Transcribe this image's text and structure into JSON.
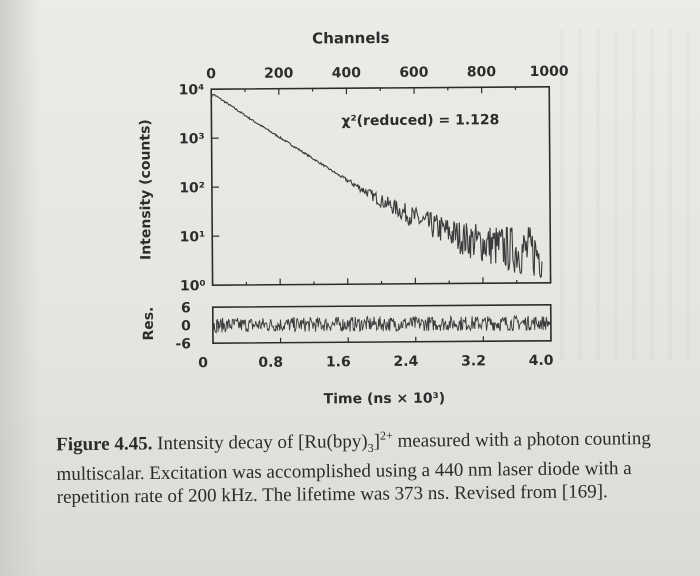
{
  "chart_data": [
    {
      "type": "line",
      "title": "",
      "top_axis_label": "Channels",
      "top_ticks": [
        "0",
        "200",
        "400",
        "600",
        "800",
        "1000"
      ],
      "top_tick_values": [
        0,
        200,
        400,
        600,
        800,
        1000
      ],
      "ylabel": "Intensity (counts)",
      "y_scale": "log",
      "y_ticks": [
        "10⁴",
        "10³",
        "10²",
        "10¹",
        "10⁰"
      ],
      "y_tick_exponents": [
        4,
        3,
        2,
        1,
        0
      ],
      "ylim": [
        1,
        10000
      ],
      "xlim_ns": [
        0,
        4000
      ],
      "annotation": "χ²(reduced) = 1.128",
      "series": [
        {
          "x_ns": [
            0,
            20,
            500,
            1000,
            1500,
            2000,
            2500,
            3000,
            3500,
            3900
          ],
          "y_counts": [
            6500,
            8000,
            2200,
            620,
            170,
            50,
            18,
            8,
            5,
            4
          ]
        }
      ]
    },
    {
      "type": "line",
      "ylabel": "Res.",
      "y_ticks": [
        "6",
        "0",
        "-6"
      ],
      "y_tick_values": [
        6,
        0,
        -6
      ],
      "ylim": [
        -6,
        6
      ],
      "xlabel": "Time (ns × 10³)",
      "x_ticks": [
        "0",
        "0.8",
        "1.6",
        "2.4",
        "3.2",
        "4.0"
      ],
      "x_tick_values": [
        0,
        0.8,
        1.6,
        2.4,
        3.2,
        4.0
      ],
      "series": [
        {
          "x_ns": [
            0,
            4000
          ],
          "y": [
            0,
            0
          ],
          "noise_amplitude": 2.5
        }
      ]
    }
  ],
  "caption": {
    "figure_label": "Figure 4.45.",
    "text_parts": [
      " Intensity decay of [Ru(bpy)",
      "3",
      "]",
      "2+",
      " measured with a photon counting multiscalar. Excitation was accomplished using a 440 nm laser diode with a repetition rate of 200 kHz. The lifetime was 373 ns. Revised from [169]."
    ]
  },
  "colors": {
    "ink": "#2c2c2c",
    "trace": "#3a3a3a",
    "page": "#ebe9e5"
  }
}
